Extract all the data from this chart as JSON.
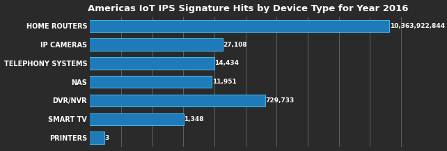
{
  "title": "Americas IoT IPS Signature Hits by Device Type for Year 2016",
  "categories": [
    "HOME ROUTERS",
    "IP CAMERAS",
    "TELEPHONY SYSTEMS",
    "NAS",
    "DVR/NVR",
    "SMART TV",
    "PRINTERS"
  ],
  "values": [
    10363922844,
    27108,
    14434,
    11951,
    729733,
    1348,
    3
  ],
  "labels": [
    "10,363,922,844",
    "27,108",
    "14,434",
    "11,951",
    "729,733",
    "1,348",
    "3"
  ],
  "bar_color": "#1e7ab8",
  "bar_edge_color": "#40b4e8",
  "background_color": "#2a2a2a",
  "text_color": "#ffffff",
  "title_color": "#ffffff",
  "grid_color": "#aaaaaa",
  "title_fontsize": 9.5,
  "label_fontsize": 6.5,
  "tick_fontsize": 7,
  "num_grid_lines": 10,
  "bar_height": 0.65
}
